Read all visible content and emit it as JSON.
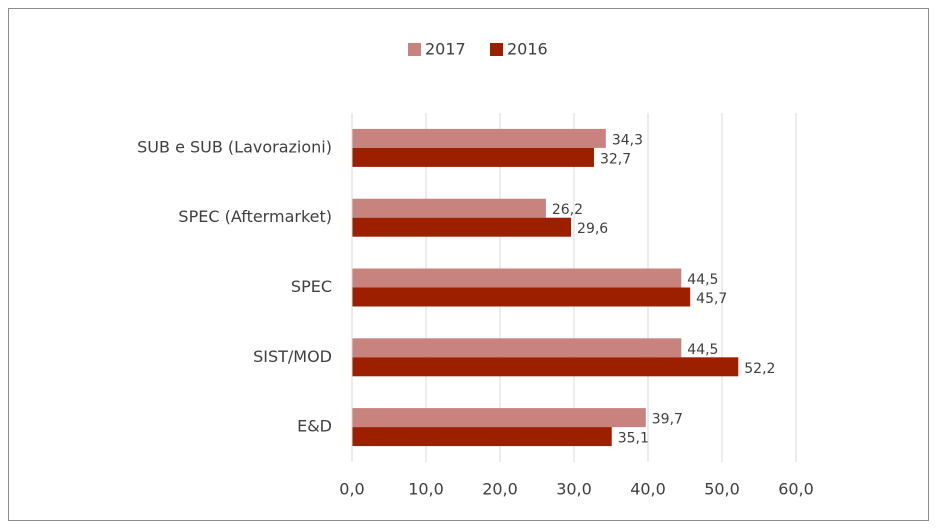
{
  "chart_data": {
    "type": "bar",
    "orientation": "horizontal",
    "categories": [
      "SUB e SUB (Lavorazioni)",
      "SPEC (Aftermarket)",
      "SPEC",
      "SIST/MOD",
      "E&D"
    ],
    "series": [
      {
        "name": "2017",
        "color": "#c8837e",
        "values": [
          34.3,
          26.2,
          44.5,
          44.5,
          39.7
        ],
        "value_labels": [
          "34,3",
          "26,2",
          "44,5",
          "44,5",
          "39,7"
        ]
      },
      {
        "name": "2016",
        "color": "#9c2000",
        "values": [
          32.7,
          29.6,
          45.7,
          52.2,
          35.1
        ],
        "value_labels": [
          "32,7",
          "29,6",
          "45,7",
          "52,2",
          "35,1"
        ]
      }
    ],
    "xlim": [
      0,
      60
    ],
    "xticks": [
      {
        "value": 0,
        "label": "0,0"
      },
      {
        "value": 10,
        "label": "10,0"
      },
      {
        "value": 20,
        "label": "20,0"
      },
      {
        "value": 30,
        "label": "30,0"
      },
      {
        "value": 40,
        "label": "40,0"
      },
      {
        "value": 50,
        "label": "50,0"
      },
      {
        "value": 60,
        "label": "60,0"
      }
    ],
    "grid": true,
    "legend": "top"
  }
}
